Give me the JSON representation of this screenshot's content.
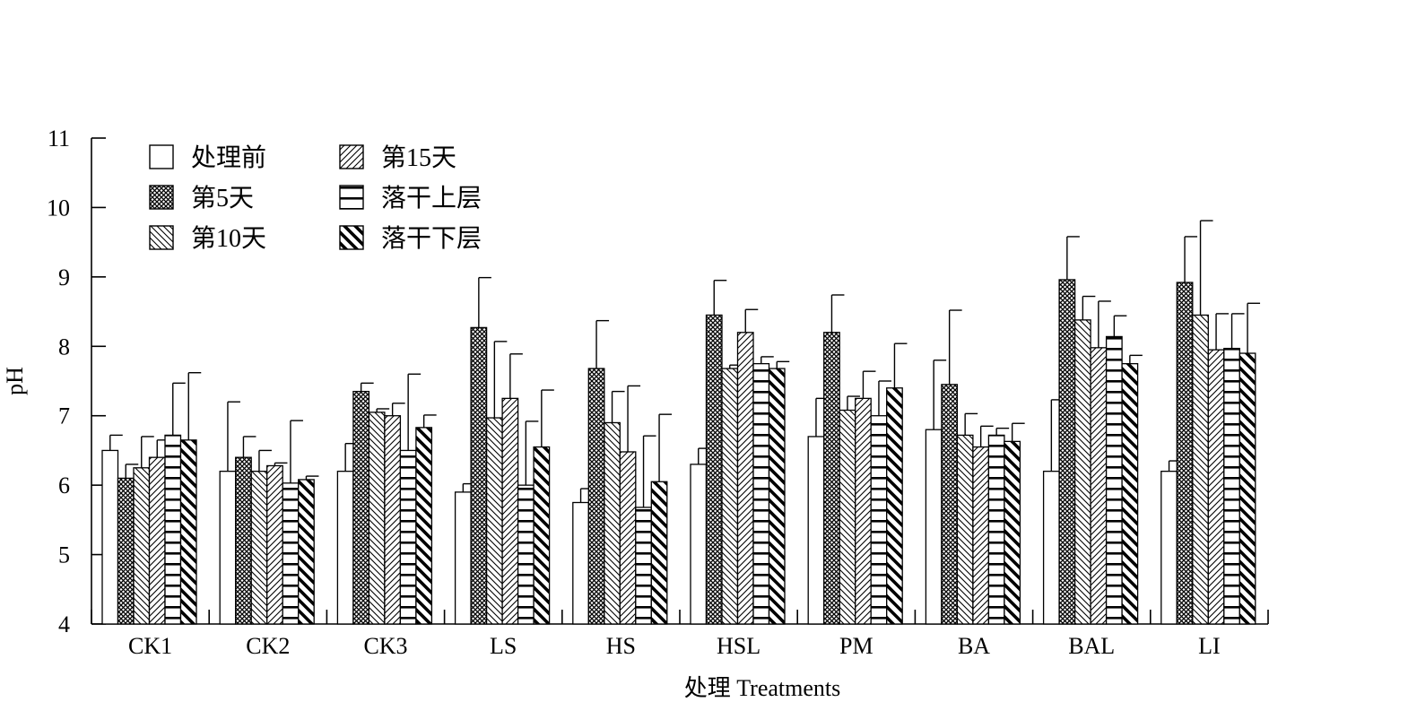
{
  "chart_data": {
    "type": "bar",
    "title": "",
    "xlabel": "处理 Treatments",
    "ylabel": "pH",
    "ylim": [
      4,
      11
    ],
    "yticks": [
      4,
      5,
      6,
      7,
      8,
      9,
      10,
      11
    ],
    "grid": false,
    "legend_position": "top-left",
    "categories": [
      "CK1",
      "CK2",
      "CK3",
      "LS",
      "HS",
      "HSL",
      "PM",
      "BA",
      "BAL",
      "LI"
    ],
    "series": [
      {
        "name": "处理前",
        "pattern": "blank",
        "values": [
          6.5,
          6.2,
          6.2,
          5.9,
          5.75,
          6.3,
          6.7,
          6.8,
          6.2,
          6.2
        ],
        "errors": [
          0.22,
          1.0,
          0.4,
          0.12,
          0.2,
          0.23,
          0.55,
          1.0,
          1.03,
          0.15
        ]
      },
      {
        "name": "第5天",
        "pattern": "crosshatch",
        "values": [
          6.1,
          6.4,
          7.35,
          8.27,
          7.68,
          8.45,
          8.2,
          7.45,
          8.96,
          8.92
        ],
        "errors": [
          0.2,
          0.3,
          0.12,
          0.72,
          0.69,
          0.5,
          0.54,
          1.07,
          0.62,
          0.66
        ]
      },
      {
        "name": "第10天",
        "pattern": "back-diagonal",
        "values": [
          6.25,
          6.2,
          7.05,
          6.97,
          6.9,
          7.68,
          7.08,
          6.72,
          8.38,
          8.45
        ],
        "errors": [
          0.45,
          0.3,
          0.05,
          1.1,
          0.45,
          0.05,
          0.2,
          0.31,
          0.34,
          1.36
        ]
      },
      {
        "name": "第15天",
        "pattern": "forward-diagonal",
        "values": [
          6.4,
          6.28,
          7.0,
          7.25,
          6.48,
          8.2,
          7.25,
          6.55,
          7.98,
          7.95
        ],
        "errors": [
          0.25,
          0.04,
          0.18,
          0.64,
          0.95,
          0.33,
          0.39,
          0.3,
          0.67,
          0.52
        ]
      },
      {
        "name": "落干上层",
        "pattern": "horizontal",
        "values": [
          6.72,
          6.03,
          6.5,
          6.0,
          5.68,
          7.75,
          7.0,
          6.72,
          8.14,
          7.97
        ],
        "errors": [
          0.75,
          0.9,
          1.1,
          0.92,
          1.03,
          0.1,
          0.5,
          0.1,
          0.3,
          0.5
        ]
      },
      {
        "name": "落干下层",
        "pattern": "thick-diagonal",
        "values": [
          6.65,
          6.08,
          6.83,
          6.55,
          6.05,
          7.68,
          7.4,
          6.63,
          7.75,
          7.9
        ],
        "errors": [
          0.97,
          0.05,
          0.18,
          0.82,
          0.97,
          0.1,
          0.64,
          0.26,
          0.12,
          0.72
        ]
      }
    ]
  }
}
